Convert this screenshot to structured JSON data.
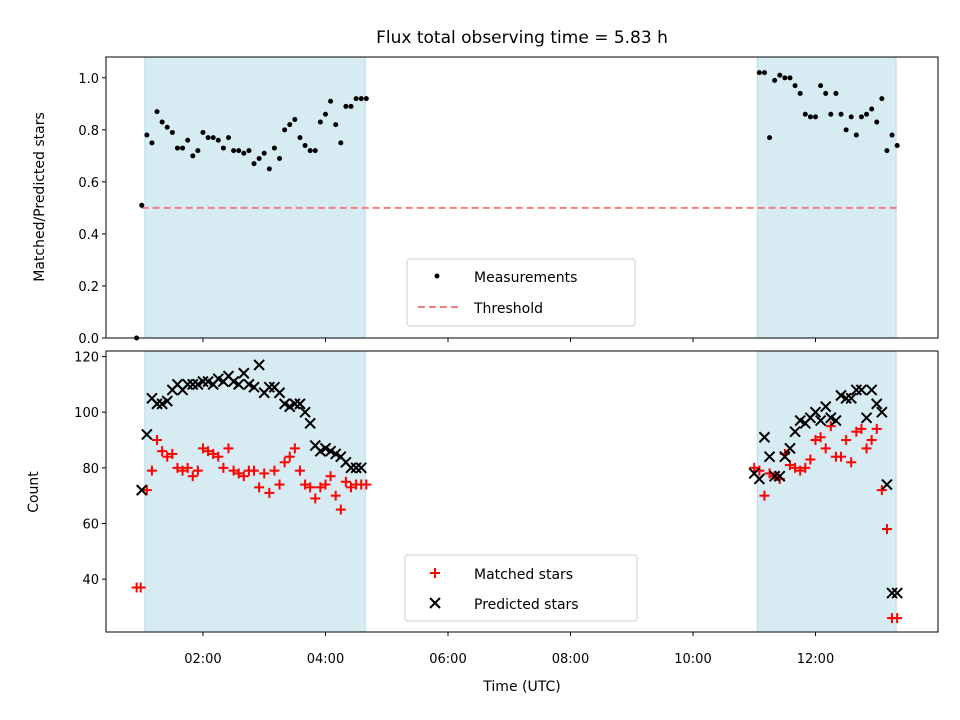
{
  "chart_data": [
    {
      "type": "scatter",
      "title": "Flux total observing time = 5.83 h",
      "xlabel": "",
      "ylabel": "Matched/Predicted stars",
      "xlim": [
        "00:25",
        "14:00"
      ],
      "ylim": [
        0,
        1.08
      ],
      "yticks": [
        "0.0",
        "0.2",
        "0.4",
        "0.6",
        "0.8",
        "1.0"
      ],
      "grid": false,
      "legend_placement": "lower-center",
      "shaded_intervals": [
        [
          "01:03",
          "04:39"
        ],
        [
          "11:03",
          "13:19"
        ]
      ],
      "series": [
        {
          "name": "Measurements",
          "marker": "dot",
          "color": "#000000",
          "x": [
            "00:55",
            "01:00",
            "01:05",
            "01:10",
            "01:15",
            "01:20",
            "01:25",
            "01:30",
            "01:35",
            "01:40",
            "01:45",
            "01:50",
            "01:55",
            "02:00",
            "02:05",
            "02:10",
            "02:15",
            "02:20",
            "02:25",
            "02:30",
            "02:35",
            "02:40",
            "02:45",
            "02:50",
            "02:55",
            "03:00",
            "03:05",
            "03:10",
            "03:15",
            "03:20",
            "03:25",
            "03:30",
            "03:35",
            "03:40",
            "03:45",
            "03:50",
            "03:55",
            "04:00",
            "04:05",
            "04:10",
            "04:15",
            "04:20",
            "04:25",
            "04:30",
            "04:35",
            "04:40",
            "11:05",
            "11:10",
            "11:15",
            "11:20",
            "11:25",
            "11:30",
            "11:35",
            "11:40",
            "11:45",
            "11:50",
            "11:55",
            "12:00",
            "12:05",
            "12:10",
            "12:15",
            "12:20",
            "12:25",
            "12:30",
            "12:35",
            "12:40",
            "12:45",
            "12:50",
            "12:55",
            "13:00",
            "13:05",
            "13:10",
            "13:15",
            "13:20"
          ],
          "values": [
            0.0,
            0.51,
            0.78,
            0.75,
            0.87,
            0.83,
            0.81,
            0.79,
            0.73,
            0.73,
            0.76,
            0.7,
            0.72,
            0.79,
            0.77,
            0.77,
            0.76,
            0.73,
            0.77,
            0.72,
            0.72,
            0.71,
            0.72,
            0.67,
            0.69,
            0.71,
            0.65,
            0.73,
            0.69,
            0.8,
            0.82,
            0.84,
            0.77,
            0.74,
            0.72,
            0.72,
            0.83,
            0.86,
            0.91,
            0.82,
            0.75,
            0.89,
            0.89,
            0.92,
            0.92,
            0.92,
            1.02,
            1.02,
            0.77,
            0.99,
            1.01,
            1.0,
            1.0,
            0.97,
            0.94,
            0.86,
            0.85,
            0.85,
            0.97,
            0.94,
            0.86,
            0.94,
            0.86,
            0.8,
            0.85,
            0.78,
            0.85,
            0.86,
            0.88,
            0.83,
            0.92,
            0.72,
            0.78,
            0.74
          ]
        },
        {
          "name": "Threshold",
          "marker": "dashed-line",
          "color": "#f08080",
          "x": [
            "01:00",
            "13:20"
          ],
          "values": [
            0.5,
            0.5
          ]
        }
      ]
    },
    {
      "type": "scatter",
      "title": "",
      "xlabel": "Time (UTC)",
      "ylabel": "Count",
      "xlim": [
        "00:25",
        "14:00"
      ],
      "ylim": [
        21,
        122
      ],
      "yticks": [
        "40",
        "60",
        "80",
        "100",
        "120"
      ],
      "xticks": [
        "02:00",
        "04:00",
        "06:00",
        "08:00",
        "10:00",
        "12:00"
      ],
      "grid": false,
      "legend_placement": "lower-center",
      "shaded_intervals": [
        [
          "01:03",
          "04:39"
        ],
        [
          "11:03",
          "13:19"
        ]
      ],
      "series": [
        {
          "name": "Matched stars",
          "marker": "plus",
          "color": "#ff0000",
          "x": [
            "00:55",
            "00:59",
            "01:05",
            "01:10",
            "01:15",
            "01:20",
            "01:25",
            "01:30",
            "01:35",
            "01:40",
            "01:45",
            "01:50",
            "01:55",
            "02:00",
            "02:05",
            "02:10",
            "02:15",
            "02:20",
            "02:25",
            "02:30",
            "02:35",
            "02:40",
            "02:45",
            "02:50",
            "02:55",
            "03:00",
            "03:05",
            "03:10",
            "03:15",
            "03:20",
            "03:25",
            "03:30",
            "03:35",
            "03:40",
            "03:45",
            "03:50",
            "03:55",
            "04:00",
            "04:05",
            "04:10",
            "04:15",
            "04:20",
            "04:25",
            "04:30",
            "04:35",
            "04:40",
            "11:00",
            "11:05",
            "11:10",
            "11:15",
            "11:20",
            "11:25",
            "11:30",
            "11:35",
            "11:40",
            "11:45",
            "11:50",
            "11:55",
            "12:00",
            "12:05",
            "12:10",
            "12:15",
            "12:20",
            "12:25",
            "12:30",
            "12:35",
            "12:40",
            "12:45",
            "12:50",
            "12:55",
            "13:00",
            "13:05",
            "13:10",
            "13:15",
            "13:20"
          ],
          "values": [
            37,
            37,
            72,
            79,
            90,
            86,
            84,
            85,
            80,
            79,
            80,
            77,
            79,
            87,
            86,
            85,
            84,
            80,
            87,
            79,
            78,
            77,
            79,
            79,
            73,
            78,
            71,
            79,
            74,
            82,
            84,
            87,
            79,
            74,
            73,
            69,
            73,
            74,
            77,
            70,
            65,
            75,
            73,
            74,
            74,
            74,
            80,
            79,
            70,
            78,
            77,
            76,
            85,
            81,
            80,
            79,
            80,
            83,
            90,
            91,
            87,
            95,
            84,
            84,
            90,
            82,
            93,
            94,
            87,
            90,
            94,
            72,
            58,
            26,
            26
          ]
        },
        {
          "name": "Predicted stars",
          "marker": "cross",
          "color": "#000000",
          "x": [
            "01:00",
            "01:05",
            "01:10",
            "01:15",
            "01:20",
            "01:25",
            "01:30",
            "01:35",
            "01:40",
            "01:45",
            "01:50",
            "01:55",
            "02:00",
            "02:05",
            "02:10",
            "02:15",
            "02:20",
            "02:25",
            "02:30",
            "02:35",
            "02:40",
            "02:45",
            "02:50",
            "02:55",
            "03:00",
            "03:05",
            "03:10",
            "03:15",
            "03:20",
            "03:25",
            "03:30",
            "03:35",
            "03:40",
            "03:45",
            "03:50",
            "03:55",
            "04:00",
            "04:05",
            "04:10",
            "04:15",
            "04:20",
            "04:25",
            "04:30",
            "04:35",
            "11:00",
            "11:05",
            "11:10",
            "11:15",
            "11:20",
            "11:25",
            "11:30",
            "11:35",
            "11:40",
            "11:45",
            "11:50",
            "11:55",
            "12:00",
            "12:05",
            "12:10",
            "12:15",
            "12:20",
            "12:25",
            "12:30",
            "12:35",
            "12:40",
            "12:45",
            "12:50",
            "12:55",
            "13:00",
            "13:05",
            "13:10",
            "13:15",
            "13:20"
          ],
          "values": [
            72,
            92,
            105,
            103,
            103,
            104,
            108,
            110,
            108,
            110,
            110,
            110,
            111,
            111,
            110,
            112,
            111,
            113,
            111,
            110,
            114,
            110,
            109,
            117,
            107,
            109,
            109,
            107,
            103,
            102,
            103,
            103,
            100,
            96,
            88,
            86,
            87,
            86,
            85,
            84,
            82,
            80,
            80,
            80,
            78,
            76,
            91,
            84,
            77,
            77,
            84,
            87,
            93,
            97,
            96,
            98,
            100,
            97,
            102,
            98,
            97,
            106,
            105,
            105,
            108,
            108,
            98,
            108,
            103,
            100,
            74,
            35,
            35
          ]
        }
      ]
    }
  ]
}
